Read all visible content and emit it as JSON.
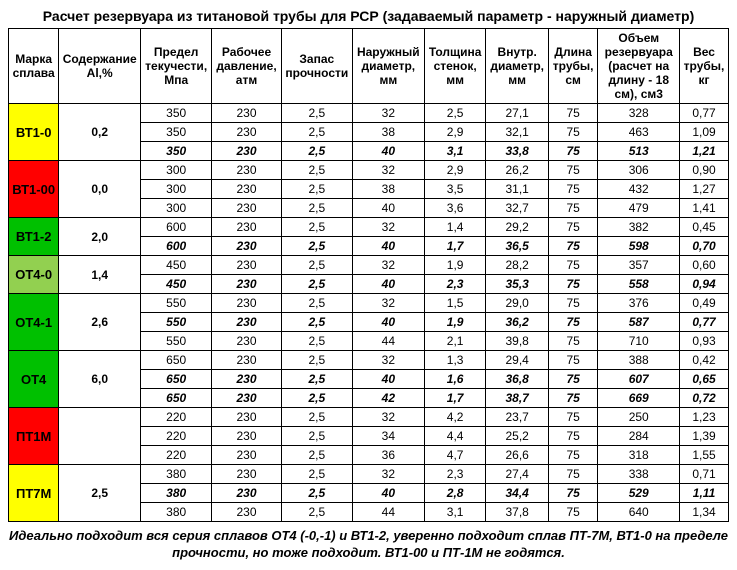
{
  "title": "Расчет резервуара из титановой трубы для РСР (задаваемый параметр - наружный диаметр)",
  "columns": [
    "Марка сплава",
    "Содержание Al,%",
    "Предел текучести, Мпа",
    "Рабочее давление, атм",
    "Запас прочности",
    "Наружный диаметр, мм",
    "Толщина стенок, мм",
    "Внутр. диаметр, мм",
    "Длина трубы, см",
    "Объем резервуара (расчет на длину - 18 см), см3",
    "Вес трубы, кг"
  ],
  "colors": {
    "green": "#00c000",
    "lime": "#92d050",
    "yellow": "#ffff00",
    "orange": "#ffa500",
    "red": "#ff0000"
  },
  "groups": [
    {
      "alloy": "ВТ1-0",
      "al": "0,2",
      "color": "yellow",
      "rows": [
        {
          "vals": [
            "350",
            "230",
            "2,5",
            "32",
            "2,5",
            "27,1",
            "75",
            "328",
            "0,77"
          ],
          "hi": false
        },
        {
          "vals": [
            "350",
            "230",
            "2,5",
            "38",
            "2,9",
            "32,1",
            "75",
            "463",
            "1,09"
          ],
          "hi": false
        },
        {
          "vals": [
            "350",
            "230",
            "2,5",
            "40",
            "3,1",
            "33,8",
            "75",
            "513",
            "1,21"
          ],
          "hi": true
        }
      ]
    },
    {
      "alloy": "ВТ1-00",
      "al": "0,0",
      "color": "red",
      "rows": [
        {
          "vals": [
            "300",
            "230",
            "2,5",
            "32",
            "2,9",
            "26,2",
            "75",
            "306",
            "0,90"
          ],
          "hi": false
        },
        {
          "vals": [
            "300",
            "230",
            "2,5",
            "38",
            "3,5",
            "31,1",
            "75",
            "432",
            "1,27"
          ],
          "hi": false
        },
        {
          "vals": [
            "300",
            "230",
            "2,5",
            "40",
            "3,6",
            "32,7",
            "75",
            "479",
            "1,41"
          ],
          "hi": false
        }
      ]
    },
    {
      "alloy": "ВТ1-2",
      "al": "2,0",
      "color": "green",
      "rows": [
        {
          "vals": [
            "600",
            "230",
            "2,5",
            "32",
            "1,4",
            "29,2",
            "75",
            "382",
            "0,45"
          ],
          "hi": false
        },
        {
          "vals": [
            "600",
            "230",
            "2,5",
            "40",
            "1,7",
            "36,5",
            "75",
            "598",
            "0,70"
          ],
          "hi": true
        }
      ]
    },
    {
      "alloy": "ОТ4-0",
      "al": "1,4",
      "color": "lime",
      "rows": [
        {
          "vals": [
            "450",
            "230",
            "2,5",
            "32",
            "1,9",
            "28,2",
            "75",
            "357",
            "0,60"
          ],
          "hi": false
        },
        {
          "vals": [
            "450",
            "230",
            "2,5",
            "40",
            "2,3",
            "35,3",
            "75",
            "558",
            "0,94"
          ],
          "hi": true
        }
      ]
    },
    {
      "alloy": "ОТ4-1",
      "al": "2,6",
      "color": "green",
      "rows": [
        {
          "vals": [
            "550",
            "230",
            "2,5",
            "32",
            "1,5",
            "29,0",
            "75",
            "376",
            "0,49"
          ],
          "hi": false
        },
        {
          "vals": [
            "550",
            "230",
            "2,5",
            "40",
            "1,9",
            "36,2",
            "75",
            "587",
            "0,77"
          ],
          "hi": true
        },
        {
          "vals": [
            "550",
            "230",
            "2,5",
            "44",
            "2,1",
            "39,8",
            "75",
            "710",
            "0,93"
          ],
          "hi": false
        }
      ]
    },
    {
      "alloy": "ОТ4",
      "al": "6,0",
      "color": "green",
      "rows": [
        {
          "vals": [
            "650",
            "230",
            "2,5",
            "32",
            "1,3",
            "29,4",
            "75",
            "388",
            "0,42"
          ],
          "hi": false
        },
        {
          "vals": [
            "650",
            "230",
            "2,5",
            "40",
            "1,6",
            "36,8",
            "75",
            "607",
            "0,65"
          ],
          "hi": true
        },
        {
          "vals": [
            "650",
            "230",
            "2,5",
            "42",
            "1,7",
            "38,7",
            "75",
            "669",
            "0,72"
          ],
          "hi": true
        }
      ]
    },
    {
      "alloy": "ПТ1М",
      "al": "",
      "color": "red",
      "rows": [
        {
          "vals": [
            "220",
            "230",
            "2,5",
            "32",
            "4,2",
            "23,7",
            "75",
            "250",
            "1,23"
          ],
          "hi": false
        },
        {
          "vals": [
            "220",
            "230",
            "2,5",
            "34",
            "4,4",
            "25,2",
            "75",
            "284",
            "1,39"
          ],
          "hi": false
        },
        {
          "vals": [
            "220",
            "230",
            "2,5",
            "36",
            "4,7",
            "26,6",
            "75",
            "318",
            "1,55"
          ],
          "hi": false
        }
      ]
    },
    {
      "alloy": "ПТ7М",
      "al": "2,5",
      "color": "yellow",
      "rows": [
        {
          "vals": [
            "380",
            "230",
            "2,5",
            "32",
            "2,3",
            "27,4",
            "75",
            "338",
            "0,71"
          ],
          "hi": false
        },
        {
          "vals": [
            "380",
            "230",
            "2,5",
            "40",
            "2,8",
            "34,4",
            "75",
            "529",
            "1,11"
          ],
          "hi": true
        },
        {
          "vals": [
            "380",
            "230",
            "2,5",
            "44",
            "3,1",
            "37,8",
            "75",
            "640",
            "1,34"
          ],
          "hi": false
        }
      ]
    }
  ],
  "footer": "Идеально подходит вся серия сплавов ОТ4 (-0,-1) и ВТ1-2, уверенно подходит сплав ПТ-7М, ВТ1-0  на пределе прочности, но тоже подходит. ВТ1-00 и ПТ-1М не годятся."
}
